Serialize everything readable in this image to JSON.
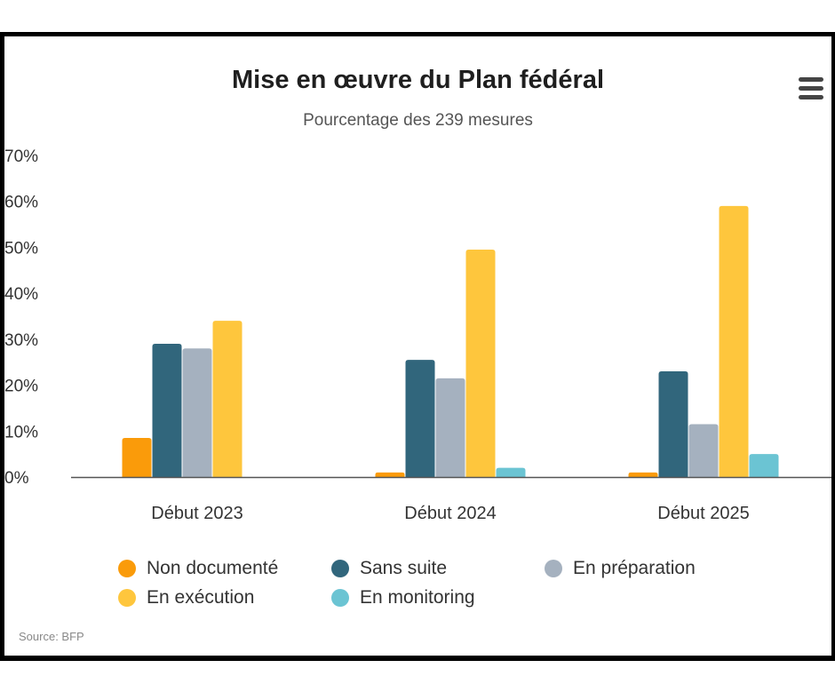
{
  "title": "Mise en œuvre du Plan fédéral",
  "subtitle": "Pourcentage des 239 mesures",
  "source": "Source: BFP",
  "menu_icon": "hamburger-menu-icon",
  "y_tick_labels": [
    "0%",
    "10%",
    "20%",
    "30%",
    "40%",
    "50%",
    "60%",
    "70%"
  ],
  "chart_data": {
    "type": "bar",
    "title": "Mise en œuvre du Plan fédéral",
    "subtitle": "Pourcentage des 239 mesures",
    "categories": [
      "Début 2023",
      "Début 2024",
      "Début 2025"
    ],
    "series": [
      {
        "name": "Non documenté",
        "color": "#fa9b0a",
        "values": [
          8.5,
          1,
          1
        ]
      },
      {
        "name": "Sans suite",
        "color": "#31667c",
        "values": [
          29,
          25.5,
          23
        ]
      },
      {
        "name": "En préparation",
        "color": "#a5b1bf",
        "values": [
          28,
          21.5,
          11.5
        ]
      },
      {
        "name": "En exécution",
        "color": "#fec63d",
        "values": [
          34,
          49.5,
          59
        ]
      },
      {
        "name": "En monitoring",
        "color": "#6bc4d3",
        "values": [
          0,
          2,
          5
        ]
      }
    ],
    "ylim": [
      0,
      70
    ],
    "yticks": [
      0,
      10,
      20,
      30,
      40,
      50,
      60,
      70
    ],
    "xlabel": "",
    "ylabel": "",
    "grid": false,
    "legend_position": "bottom"
  }
}
